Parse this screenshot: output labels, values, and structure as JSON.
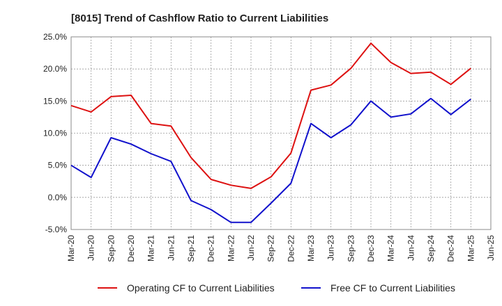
{
  "chart_data": {
    "type": "line",
    "title": "[8015]  Trend of Cashflow Ratio to Current Liabilities",
    "xlabel": "",
    "ylabel": "",
    "x": [
      "Mar-20",
      "Jun-20",
      "Sep-20",
      "Dec-20",
      "Mar-21",
      "Jun-21",
      "Sep-21",
      "Dec-21",
      "Mar-22",
      "Jun-22",
      "Sep-22",
      "Dec-22",
      "Mar-23",
      "Jun-23",
      "Sep-23",
      "Dec-23",
      "Mar-24",
      "Jun-24",
      "Sep-24",
      "Dec-24",
      "Mar-25",
      "Jun-25"
    ],
    "ylim": [
      -5.0,
      25.0
    ],
    "yticks": [
      25.0,
      20.0,
      15.0,
      10.0,
      5.0,
      0.0,
      -5.0
    ],
    "ytick_labels": [
      "25.0%",
      "20.0%",
      "15.0%",
      "10.0%",
      "5.0%",
      "0.0%",
      "-5.0%"
    ],
    "grid": true,
    "legend_position": "bottom",
    "series": [
      {
        "name": "Operating CF to Current Liabilities",
        "color": "#dd1111",
        "values": [
          14.3,
          13.3,
          15.7,
          15.9,
          11.5,
          11.1,
          6.2,
          2.8,
          1.9,
          1.4,
          3.2,
          6.9,
          16.7,
          17.5,
          20.1,
          24.0,
          21.0,
          19.3,
          19.5,
          17.6,
          20.1,
          null
        ]
      },
      {
        "name": "Free CF to Current Liabilities",
        "color": "#1111cc",
        "values": [
          5.0,
          3.1,
          9.3,
          8.3,
          6.8,
          5.6,
          -0.5,
          -1.9,
          -3.9,
          -3.9,
          -0.9,
          2.2,
          11.5,
          9.3,
          11.3,
          15.0,
          12.5,
          13.0,
          15.4,
          12.9,
          15.3,
          null
        ]
      }
    ]
  }
}
